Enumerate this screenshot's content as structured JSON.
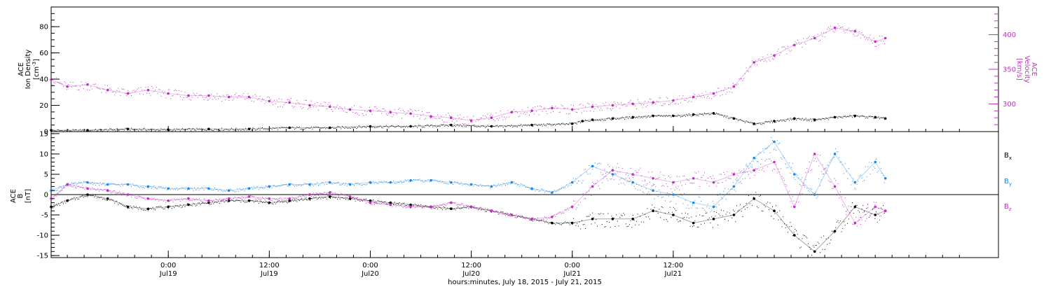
{
  "chart_data": [
    {
      "type": "scatter",
      "ylabel": {
        "mission": "ACE",
        "quantity": "Ion Density",
        "unit_base": "[cm",
        "unit_exp": "-3",
        "unit_close": "]"
      },
      "y2label": {
        "mission": "ACE",
        "quantity": "Velocity",
        "unit": "[km/s]"
      },
      "ylim": [
        0,
        95
      ],
      "y2lim": [
        260,
        440
      ],
      "yticks": [
        0,
        20,
        40,
        60,
        80
      ],
      "y2ticks": [
        300,
        350,
        400
      ],
      "series": [
        {
          "color": "#000000",
          "axis": "left",
          "x": [
            -0.58,
            -0.4,
            -0.2,
            0,
            0.2,
            0.4,
            0.6,
            0.8,
            1.0,
            1.2,
            1.4,
            1.6,
            1.8,
            2.0,
            2.05,
            2.1,
            2.2,
            2.3,
            2.4,
            2.5,
            2.6,
            2.7,
            2.8,
            2.9,
            3.0,
            3.1,
            3.2,
            3.3,
            3.4,
            3.5,
            3.55
          ],
          "y": [
            1,
            1,
            2,
            1.5,
            2,
            2,
            3,
            3,
            4,
            4,
            5,
            4,
            5,
            6,
            8,
            9,
            10,
            11,
            12,
            12,
            13,
            14,
            10,
            6,
            8,
            10,
            9,
            11,
            12,
            11,
            10
          ]
        },
        {
          "color": "#c030c0",
          "axis": "right",
          "x": [
            -0.58,
            -0.5,
            -0.4,
            -0.3,
            -0.2,
            -0.1,
            0,
            0.1,
            0.2,
            0.3,
            0.4,
            0.5,
            0.6,
            0.7,
            0.8,
            0.9,
            1.0,
            1.1,
            1.2,
            1.3,
            1.4,
            1.5,
            1.6,
            1.7,
            1.8,
            1.9,
            2.0,
            2.1,
            2.2,
            2.3,
            2.4,
            2.5,
            2.6,
            2.7,
            2.8,
            2.9,
            3.0,
            3.1,
            3.2,
            3.3,
            3.4,
            3.5,
            3.55
          ],
          "y": [
            335,
            325,
            328,
            320,
            315,
            320,
            315,
            312,
            312,
            310,
            310,
            304,
            302,
            298,
            296,
            292,
            290,
            288,
            286,
            282,
            280,
            276,
            280,
            288,
            290,
            294,
            292,
            296,
            298,
            300,
            302,
            305,
            310,
            315,
            325,
            360,
            370,
            385,
            395,
            410,
            405,
            390,
            395
          ]
        }
      ]
    },
    {
      "type": "scatter",
      "ylabel": {
        "mission": "ACE",
        "quantity": "B",
        "unit": "[nT]"
      },
      "ylim": [
        -15.5,
        15.5
      ],
      "yticks": [
        -15,
        -10,
        -5,
        0,
        5,
        10,
        15
      ],
      "legend": [
        {
          "name": "B",
          "sub": "x",
          "color": "#000000"
        },
        {
          "name": "B",
          "sub": "y",
          "color": "#1e88e5"
        },
        {
          "name": "B",
          "sub": "z",
          "color": "#c030c0"
        }
      ],
      "series": [
        {
          "name": "Bx",
          "color": "#000000",
          "x": [
            -0.58,
            -0.5,
            -0.4,
            -0.3,
            -0.2,
            -0.1,
            0,
            0.1,
            0.2,
            0.3,
            0.4,
            0.5,
            0.6,
            0.7,
            0.8,
            0.9,
            1.0,
            1.1,
            1.2,
            1.3,
            1.4,
            1.5,
            1.6,
            1.7,
            1.8,
            1.9,
            2.0,
            2.1,
            2.2,
            2.3,
            2.4,
            2.5,
            2.6,
            2.7,
            2.8,
            2.9,
            3.0,
            3.1,
            3.2,
            3.3,
            3.4,
            3.5,
            3.55
          ],
          "y": [
            -3,
            -1.5,
            0,
            -1,
            -3,
            -3.5,
            -3,
            -2.5,
            -2,
            -1.5,
            -1.5,
            -2,
            -1.5,
            -1,
            -0.5,
            -1,
            -1.5,
            -2,
            -2.5,
            -3,
            -3.5,
            -3,
            -4,
            -5,
            -6,
            -7,
            -7,
            -6,
            -6,
            -6,
            -4,
            -5,
            -7,
            -6,
            -5,
            -1,
            -4,
            -10,
            -14,
            -9,
            -3,
            -5,
            -4
          ]
        },
        {
          "name": "By",
          "color": "#1e88e5",
          "x": [
            -0.58,
            -0.5,
            -0.4,
            -0.3,
            -0.2,
            -0.1,
            0,
            0.1,
            0.2,
            0.3,
            0.4,
            0.5,
            0.6,
            0.7,
            0.8,
            0.9,
            1.0,
            1.1,
            1.2,
            1.3,
            1.4,
            1.5,
            1.6,
            1.7,
            1.8,
            1.9,
            2.0,
            2.1,
            2.2,
            2.3,
            2.4,
            2.5,
            2.6,
            2.7,
            2.8,
            2.9,
            3.0,
            3.1,
            3.2,
            3.3,
            3.4,
            3.5,
            3.55
          ],
          "y": [
            1,
            2.5,
            3,
            2.5,
            2.5,
            2,
            1.5,
            1.5,
            1.5,
            1,
            1.5,
            2,
            2.5,
            2.5,
            3,
            2.5,
            3,
            3,
            3.5,
            3.5,
            3,
            2.5,
            2,
            3,
            1.5,
            0.5,
            3,
            7,
            5,
            3,
            1,
            0,
            -2,
            -3,
            2,
            9,
            13,
            5,
            0,
            10,
            3,
            8,
            4
          ]
        },
        {
          "name": "Bz",
          "color": "#c030c0",
          "x": [
            -0.58,
            -0.5,
            -0.4,
            -0.3,
            -0.2,
            -0.1,
            0,
            0.1,
            0.2,
            0.3,
            0.4,
            0.5,
            0.6,
            0.7,
            0.8,
            0.9,
            1.0,
            1.1,
            1.2,
            1.3,
            1.4,
            1.5,
            1.6,
            1.7,
            1.8,
            1.9,
            2.0,
            2.1,
            2.2,
            2.3,
            2.4,
            2.5,
            2.6,
            2.7,
            2.8,
            2.9,
            3.0,
            3.1,
            3.2,
            3.3,
            3.4,
            3.5,
            3.55
          ],
          "y": [
            -1,
            2.5,
            1.5,
            1,
            0,
            -1,
            -1.5,
            -1,
            -1.5,
            -1,
            -0.5,
            -1,
            -1,
            0,
            0.5,
            -0.5,
            -2,
            -2.5,
            -3,
            -3,
            -2,
            -3,
            -4,
            -5,
            -6,
            -5.5,
            -3,
            2,
            6,
            5,
            4,
            3,
            4,
            3,
            5,
            6,
            8,
            -3,
            10,
            2,
            -7,
            -3,
            -4
          ]
        }
      ]
    }
  ],
  "x_axis": {
    "range_days": [
      -0.58,
      4.11
    ],
    "ticks": [
      {
        "x": 0,
        "time": "0:00",
        "date": "Jul19"
      },
      {
        "x": 0.5,
        "time": "12:00",
        "date": "Jul19"
      },
      {
        "x": 1,
        "time": "0:00",
        "date": "Jul20"
      },
      {
        "x": 1.5,
        "time": "12:00",
        "date": "Jul20"
      },
      {
        "x": 2,
        "time": "0:00",
        "date": "Jul21"
      },
      {
        "x": 2.5,
        "time": "12:00",
        "date": "Jul21"
      }
    ],
    "label": "hours:minutes, July 18, 2015 - July 21, 2015"
  }
}
